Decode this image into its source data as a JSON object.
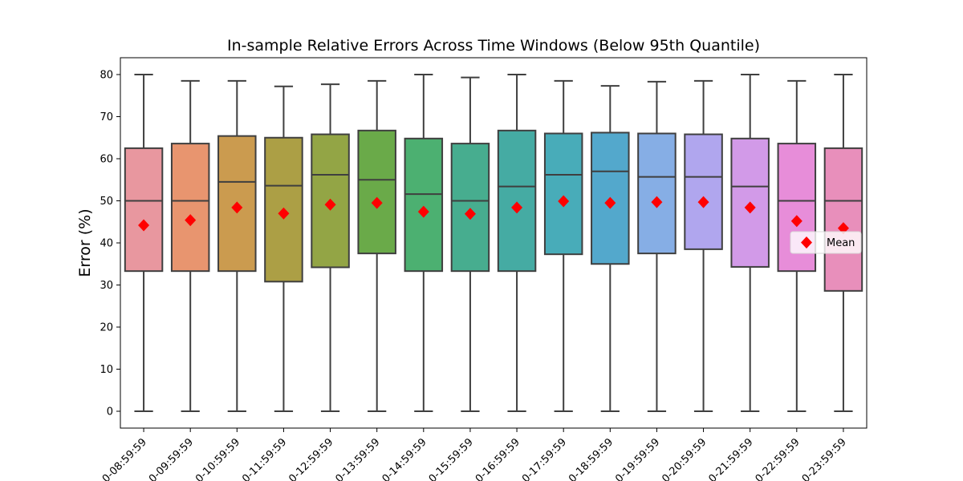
{
  "chart_data": {
    "type": "box",
    "title": "In-sample Relative Errors Across Time Windows (Below 95th Quantile)",
    "xlabel": "",
    "ylabel": "Error (%)",
    "ylim": [
      -4,
      84
    ],
    "yticks": [
      0,
      10,
      20,
      30,
      40,
      50,
      60,
      70,
      80
    ],
    "grid": false,
    "legend": {
      "label": "Mean",
      "position": "right"
    },
    "mean_color": "#ff0000",
    "categories": [
      "0-08:59:59",
      "0-09:59:59",
      "0-10:59:59",
      "0-11:59:59",
      "0-12:59:59",
      "0-13:59:59",
      "0-14:59:59",
      "0-15:59:59",
      "0-16:59:59",
      "0-17:59:59",
      "0-18:59:59",
      "0-19:59:59",
      "0-20:59:59",
      "0-21:59:59",
      "0-22:59:59",
      "0-23:59:59"
    ],
    "series": [
      {
        "min": 0,
        "q1": 33.3,
        "median": 50.0,
        "q3": 62.5,
        "max": 80.0,
        "mean": 44.2,
        "color": "#e8979f"
      },
      {
        "min": 0,
        "q1": 33.3,
        "median": 50.0,
        "q3": 63.6,
        "max": 78.5,
        "mean": 45.4,
        "color": "#e8956f"
      },
      {
        "min": 0,
        "q1": 33.3,
        "median": 54.5,
        "q3": 65.4,
        "max": 78.5,
        "mean": 48.4,
        "color": "#cb9b4f"
      },
      {
        "min": 0,
        "q1": 30.8,
        "median": 53.6,
        "q3": 65.0,
        "max": 77.2,
        "mean": 47.0,
        "color": "#ac9f45"
      },
      {
        "min": 0,
        "q1": 34.2,
        "median": 56.2,
        "q3": 65.8,
        "max": 77.7,
        "mean": 49.1,
        "color": "#93a545"
      },
      {
        "min": 0,
        "q1": 37.5,
        "median": 55.0,
        "q3": 66.7,
        "max": 78.5,
        "mean": 49.5,
        "color": "#6aaa49"
      },
      {
        "min": 0,
        "q1": 33.3,
        "median": 51.6,
        "q3": 64.8,
        "max": 80.0,
        "mean": 47.4,
        "color": "#4cb071"
      },
      {
        "min": 0,
        "q1": 33.3,
        "median": 50.0,
        "q3": 63.6,
        "max": 79.3,
        "mean": 46.9,
        "color": "#47ad8f"
      },
      {
        "min": 0,
        "q1": 33.3,
        "median": 53.4,
        "q3": 66.7,
        "max": 80.0,
        "mean": 48.4,
        "color": "#45aba3"
      },
      {
        "min": 0,
        "q1": 37.3,
        "median": 56.2,
        "q3": 66.0,
        "max": 78.5,
        "mean": 49.9,
        "color": "#48acb9"
      },
      {
        "min": 0,
        "q1": 35.0,
        "median": 57.0,
        "q3": 66.2,
        "max": 77.3,
        "mean": 49.5,
        "color": "#53a8cc"
      },
      {
        "min": 0,
        "q1": 37.5,
        "median": 55.7,
        "q3": 66.0,
        "max": 78.3,
        "mean": 49.7,
        "color": "#86aee5"
      },
      {
        "min": 0,
        "q1": 38.5,
        "median": 55.7,
        "q3": 65.8,
        "max": 78.5,
        "mean": 49.7,
        "color": "#b0a6ee"
      },
      {
        "min": 0,
        "q1": 34.3,
        "median": 53.4,
        "q3": 64.8,
        "max": 80.0,
        "mean": 48.4,
        "color": "#d29ae8"
      },
      {
        "min": 0,
        "q1": 33.3,
        "median": 50.0,
        "q3": 63.6,
        "max": 78.5,
        "mean": 45.2,
        "color": "#e78dd9"
      },
      {
        "min": 0,
        "q1": 28.6,
        "median": 50.0,
        "q3": 62.5,
        "max": 80.0,
        "mean": 43.5,
        "color": "#e88fbb"
      }
    ]
  }
}
